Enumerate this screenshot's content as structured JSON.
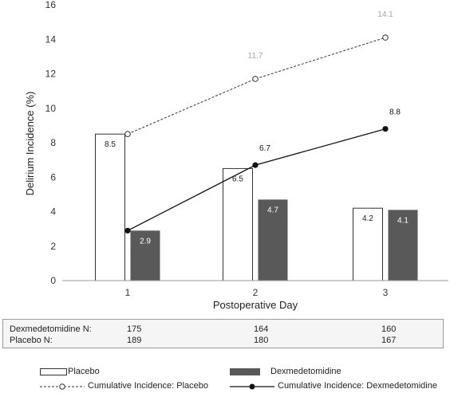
{
  "chart_data": {
    "type": "bar",
    "categories": [
      "1",
      "2",
      "3"
    ],
    "series": [
      {
        "name": "Placebo",
        "type": "bar",
        "values": [
          8.5,
          6.5,
          4.2
        ],
        "color": "#ffffff",
        "stroke": "#333333"
      },
      {
        "name": "Dexmedetomidine",
        "type": "bar",
        "values": [
          2.9,
          4.7,
          4.1
        ],
        "color": "#595959"
      },
      {
        "name": "Cumulative Incidence: Placebo",
        "type": "line",
        "values": [
          8.5,
          11.7,
          14.1
        ],
        "labels": [
          "",
          "11.7",
          "14.1"
        ],
        "color": "#333333",
        "dashed": true,
        "marker": "open-circle"
      },
      {
        "name": "Cumulative Incidence: Dexmedetomidine",
        "type": "line",
        "values": [
          2.9,
          6.7,
          8.8
        ],
        "labels": [
          "",
          "6.7",
          "8.8"
        ],
        "color": "#111111",
        "dashed": false,
        "marker": "filled-circle"
      }
    ],
    "xlabel": "Postoperative Day",
    "ylabel": "Delirium Incidence (%)",
    "ylim": [
      0,
      16
    ],
    "yticks": [
      "0",
      "2",
      "4",
      "6",
      "8",
      "10",
      "12",
      "14",
      "16"
    ],
    "grid": false,
    "legend_position": "bottom"
  },
  "n_table": {
    "rows": [
      {
        "label": "Dexmedetomidine N:",
        "values": [
          "175",
          "164",
          "160"
        ]
      },
      {
        "label": "Placebo N:",
        "values": [
          "189",
          "180",
          "167"
        ]
      }
    ]
  },
  "legend": {
    "placebo": "Placebo",
    "dexmedetomidine": "Dexmedetomidine",
    "cum_placebo": "Cumulative Incidence: Placebo",
    "cum_dex": "Cumulative Incidence: Dexmedetomidine"
  }
}
